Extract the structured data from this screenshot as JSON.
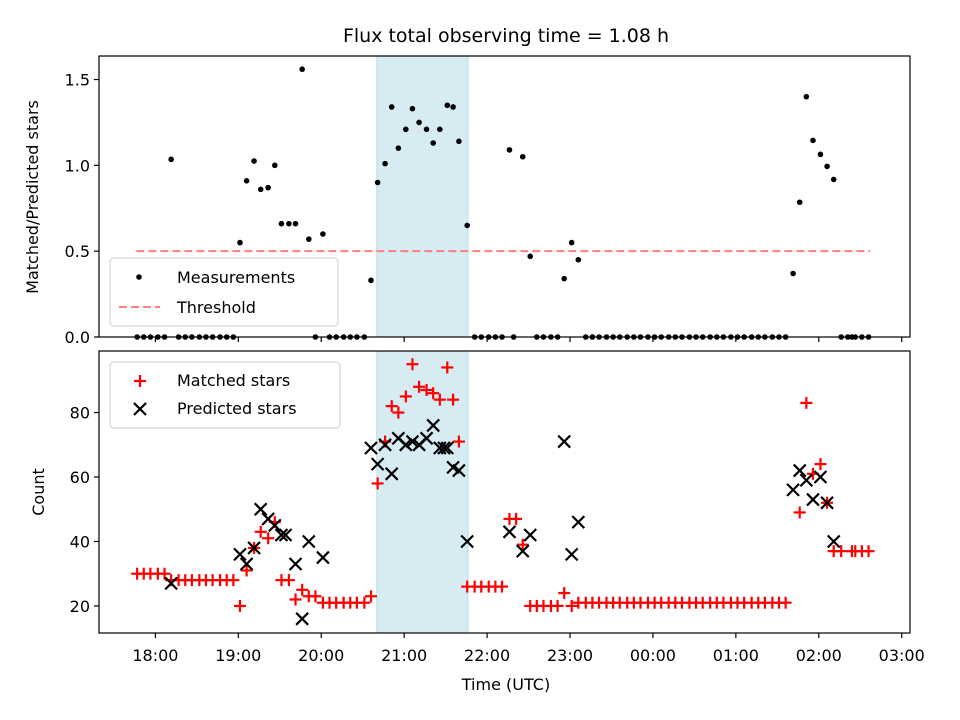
{
  "chart_data": [
    {
      "type": "scatter",
      "panel": "top",
      "title": "Flux total observing time = 1.08 h",
      "xlabel": "",
      "ylabel": "Matched/Predicted stars",
      "ylim": [
        0,
        1.637
      ],
      "xlim_hours": [
        17.32,
        27.1
      ],
      "yticks": [
        0.0,
        0.5,
        1.0,
        1.5
      ],
      "ytick_labels": [
        "0.0",
        "0.5",
        "1.0",
        "1.5"
      ],
      "shaded_span_hours": [
        20.67,
        21.77
      ],
      "shaded_color": "#add8e6",
      "legend": {
        "placement": "lower-left",
        "entries": [
          "Measurements",
          "Threshold"
        ]
      },
      "threshold": {
        "name": "Threshold",
        "value": 0.5,
        "x_range_hours": [
          17.77,
          26.62
        ],
        "color": "#ff7f7f",
        "style": "dashed"
      },
      "series": [
        {
          "name": "Measurements",
          "marker": "dot",
          "color": "#000000",
          "points": [
            [
              17.78,
              0
            ],
            [
              17.86,
              0
            ],
            [
              17.94,
              0
            ],
            [
              18.03,
              0
            ],
            [
              18.11,
              0
            ],
            [
              18.19,
              1.035
            ],
            [
              18.28,
              0
            ],
            [
              18.36,
              0
            ],
            [
              18.44,
              0
            ],
            [
              18.53,
              0
            ],
            [
              18.61,
              0
            ],
            [
              18.69,
              0
            ],
            [
              18.78,
              0
            ],
            [
              18.86,
              0
            ],
            [
              18.94,
              0
            ],
            [
              19.02,
              0.55
            ],
            [
              19.1,
              0.91
            ],
            [
              19.19,
              1.025
            ],
            [
              19.27,
              0.86
            ],
            [
              19.36,
              0.87
            ],
            [
              19.44,
              1.0
            ],
            [
              19.52,
              0.66
            ],
            [
              19.61,
              0.66
            ],
            [
              19.69,
              0.66
            ],
            [
              19.77,
              1.56
            ],
            [
              19.85,
              0.57
            ],
            [
              19.93,
              0
            ],
            [
              20.02,
              0.6
            ],
            [
              20.1,
              0
            ],
            [
              20.18,
              0
            ],
            [
              20.27,
              0
            ],
            [
              20.35,
              0
            ],
            [
              20.43,
              0
            ],
            [
              20.52,
              0
            ],
            [
              20.6,
              0.33
            ],
            [
              20.68,
              0.9
            ],
            [
              20.77,
              1.01
            ],
            [
              20.85,
              1.34
            ],
            [
              20.93,
              1.1
            ],
            [
              21.02,
              1.21
            ],
            [
              21.1,
              1.33
            ],
            [
              21.18,
              1.25
            ],
            [
              21.27,
              1.21
            ],
            [
              21.35,
              1.13
            ],
            [
              21.43,
              1.21
            ],
            [
              21.52,
              1.35
            ],
            [
              21.59,
              1.34
            ],
            [
              21.66,
              1.14
            ],
            [
              21.76,
              0.65
            ],
            [
              21.85,
              0
            ],
            [
              21.93,
              0
            ],
            [
              22.02,
              0
            ],
            [
              22.1,
              0
            ],
            [
              22.18,
              0
            ],
            [
              22.27,
              1.09
            ],
            [
              22.32,
              0
            ],
            [
              22.43,
              1.05
            ],
            [
              22.52,
              0.47
            ],
            [
              22.6,
              0
            ],
            [
              22.68,
              0
            ],
            [
              22.77,
              0
            ],
            [
              22.85,
              0
            ],
            [
              22.93,
              0.34
            ],
            [
              23.02,
              0.55
            ],
            [
              23.1,
              0.45
            ],
            [
              23.19,
              0
            ],
            [
              23.27,
              0
            ],
            [
              23.35,
              0
            ],
            [
              23.44,
              0
            ],
            [
              23.52,
              0
            ],
            [
              23.6,
              0
            ],
            [
              23.69,
              0
            ],
            [
              23.77,
              0
            ],
            [
              23.85,
              0
            ],
            [
              23.94,
              0
            ],
            [
              24.02,
              0
            ],
            [
              24.1,
              0
            ],
            [
              24.19,
              0
            ],
            [
              24.27,
              0
            ],
            [
              24.35,
              0
            ],
            [
              24.44,
              0
            ],
            [
              24.52,
              0
            ],
            [
              24.6,
              0
            ],
            [
              24.69,
              0
            ],
            [
              24.77,
              0
            ],
            [
              24.85,
              0
            ],
            [
              24.94,
              0
            ],
            [
              25.02,
              0
            ],
            [
              25.1,
              0
            ],
            [
              25.19,
              0
            ],
            [
              25.27,
              0
            ],
            [
              25.35,
              0
            ],
            [
              25.44,
              0
            ],
            [
              25.52,
              0
            ],
            [
              25.6,
              0
            ],
            [
              25.69,
              0.37
            ],
            [
              25.77,
              0.785
            ],
            [
              25.85,
              1.4
            ],
            [
              25.93,
              1.145
            ],
            [
              26.02,
              1.064
            ],
            [
              26.1,
              0.994
            ],
            [
              26.18,
              0.918
            ],
            [
              26.27,
              0
            ],
            [
              26.35,
              0
            ],
            [
              26.4,
              0
            ],
            [
              26.44,
              0
            ],
            [
              26.52,
              0
            ],
            [
              26.6,
              0
            ]
          ]
        }
      ]
    },
    {
      "type": "scatter",
      "panel": "bottom",
      "xlabel": "Time (UTC)",
      "ylabel": "Count",
      "ylim": [
        11.6,
        99.1
      ],
      "xlim_hours": [
        17.32,
        27.1
      ],
      "yticks": [
        20,
        40,
        60,
        80
      ],
      "ytick_labels": [
        "20",
        "40",
        "60",
        "80"
      ],
      "xticks_hours": [
        18,
        19,
        20,
        21,
        22,
        23,
        24,
        25,
        26,
        27
      ],
      "xtick_labels": [
        "18:00",
        "19:00",
        "20:00",
        "21:00",
        "22:00",
        "23:00",
        "00:00",
        "01:00",
        "02:00",
        "03:00"
      ],
      "shaded_span_hours": [
        20.67,
        21.77
      ],
      "shaded_color": "#add8e6",
      "legend": {
        "placement": "upper-left",
        "entries": [
          "Matched stars",
          "Predicted stars"
        ]
      },
      "series": [
        {
          "name": "Matched stars",
          "marker": "plus",
          "color": "#ff0000",
          "points": [
            [
              17.78,
              30
            ],
            [
              17.86,
              30
            ],
            [
              17.94,
              30
            ],
            [
              18.03,
              30
            ],
            [
              18.11,
              30
            ],
            [
              18.19,
              28
            ],
            [
              18.28,
              28
            ],
            [
              18.36,
              28
            ],
            [
              18.44,
              28
            ],
            [
              18.53,
              28
            ],
            [
              18.61,
              28
            ],
            [
              18.69,
              28
            ],
            [
              18.78,
              28
            ],
            [
              18.86,
              28
            ],
            [
              18.94,
              28
            ],
            [
              19.02,
              20
            ],
            [
              19.1,
              31
            ],
            [
              19.19,
              38
            ],
            [
              19.27,
              43
            ],
            [
              19.36,
              41
            ],
            [
              19.44,
              46
            ],
            [
              19.52,
              28
            ],
            [
              19.61,
              28
            ],
            [
              19.69,
              22
            ],
            [
              19.77,
              25
            ],
            [
              19.85,
              23
            ],
            [
              19.93,
              23
            ],
            [
              20.02,
              21
            ],
            [
              20.1,
              21
            ],
            [
              20.18,
              21
            ],
            [
              20.27,
              21
            ],
            [
              20.35,
              21
            ],
            [
              20.43,
              21
            ],
            [
              20.52,
              21
            ],
            [
              20.6,
              23
            ],
            [
              20.68,
              58
            ],
            [
              20.77,
              71
            ],
            [
              20.85,
              82
            ],
            [
              20.93,
              80
            ],
            [
              21.02,
              85
            ],
            [
              21.1,
              95
            ],
            [
              21.18,
              88
            ],
            [
              21.27,
              87
            ],
            [
              21.35,
              86
            ],
            [
              21.43,
              84
            ],
            [
              21.52,
              94
            ],
            [
              21.59,
              84
            ],
            [
              21.66,
              71
            ],
            [
              21.76,
              26
            ],
            [
              21.85,
              26
            ],
            [
              21.93,
              26
            ],
            [
              22.02,
              26
            ],
            [
              22.1,
              26
            ],
            [
              22.18,
              26
            ],
            [
              22.27,
              47
            ],
            [
              22.35,
              47
            ],
            [
              22.43,
              39
            ],
            [
              22.52,
              20
            ],
            [
              22.6,
              20
            ],
            [
              22.68,
              20
            ],
            [
              22.77,
              20
            ],
            [
              22.85,
              20
            ],
            [
              22.93,
              24
            ],
            [
              23.02,
              20
            ],
            [
              23.1,
              21
            ],
            [
              23.19,
              21
            ],
            [
              23.27,
              21
            ],
            [
              23.35,
              21
            ],
            [
              23.44,
              21
            ],
            [
              23.52,
              21
            ],
            [
              23.6,
              21
            ],
            [
              23.69,
              21
            ],
            [
              23.77,
              21
            ],
            [
              23.85,
              21
            ],
            [
              23.94,
              21
            ],
            [
              24.02,
              21
            ],
            [
              24.1,
              21
            ],
            [
              24.19,
              21
            ],
            [
              24.27,
              21
            ],
            [
              24.35,
              21
            ],
            [
              24.44,
              21
            ],
            [
              24.52,
              21
            ],
            [
              24.6,
              21
            ],
            [
              24.69,
              21
            ],
            [
              24.77,
              21
            ],
            [
              24.85,
              21
            ],
            [
              24.94,
              21
            ],
            [
              25.02,
              21
            ],
            [
              25.1,
              21
            ],
            [
              25.19,
              21
            ],
            [
              25.27,
              21
            ],
            [
              25.35,
              21
            ],
            [
              25.44,
              21
            ],
            [
              25.52,
              21
            ],
            [
              25.6,
              21
            ],
            [
              25.77,
              49
            ],
            [
              25.85,
              83
            ],
            [
              25.93,
              61
            ],
            [
              26.02,
              64
            ],
            [
              26.1,
              52
            ],
            [
              26.18,
              37
            ],
            [
              26.27,
              37
            ],
            [
              26.4,
              37
            ],
            [
              26.44,
              37
            ],
            [
              26.52,
              37
            ],
            [
              26.6,
              37
            ]
          ]
        },
        {
          "name": "Predicted stars",
          "marker": "x",
          "color": "#000000",
          "points": [
            [
              18.19,
              27
            ],
            [
              19.02,
              36
            ],
            [
              19.1,
              33
            ],
            [
              19.19,
              38
            ],
            [
              19.27,
              50
            ],
            [
              19.36,
              47
            ],
            [
              19.44,
              45
            ],
            [
              19.52,
              42
            ],
            [
              19.57,
              42
            ],
            [
              19.69,
              33
            ],
            [
              19.77,
              16
            ],
            [
              19.85,
              40
            ],
            [
              20.02,
              35
            ],
            [
              20.6,
              69
            ],
            [
              20.68,
              64
            ],
            [
              20.77,
              70
            ],
            [
              20.85,
              61
            ],
            [
              20.93,
              72
            ],
            [
              21.02,
              70
            ],
            [
              21.1,
              71
            ],
            [
              21.18,
              70
            ],
            [
              21.27,
              72
            ],
            [
              21.35,
              76
            ],
            [
              21.43,
              69
            ],
            [
              21.48,
              69
            ],
            [
              21.52,
              69
            ],
            [
              21.59,
              63
            ],
            [
              21.66,
              62
            ],
            [
              21.76,
              40
            ],
            [
              22.27,
              43
            ],
            [
              22.43,
              37
            ],
            [
              22.52,
              42
            ],
            [
              22.93,
              71
            ],
            [
              23.02,
              36
            ],
            [
              23.1,
              46
            ],
            [
              25.69,
              56
            ],
            [
              25.77,
              62
            ],
            [
              25.85,
              59
            ],
            [
              25.93,
              53
            ],
            [
              26.02,
              60
            ],
            [
              26.1,
              52
            ],
            [
              26.18,
              40
            ]
          ]
        }
      ]
    }
  ]
}
